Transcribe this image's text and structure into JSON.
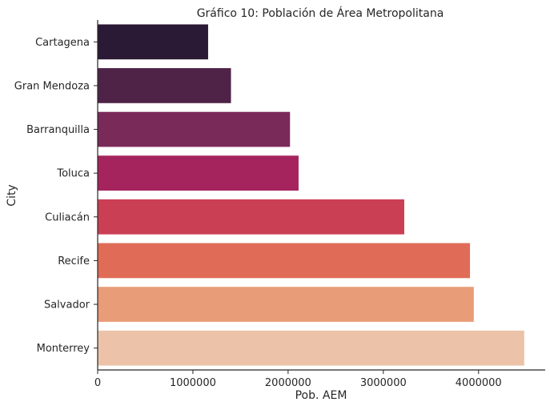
{
  "chart_data": {
    "type": "bar",
    "orientation": "horizontal",
    "title": "Gráfico 10: Población de Área Metropolitana",
    "xlabel": "Pob. AEM",
    "ylabel": "City",
    "categories": [
      "Cartagena",
      "Gran Mendoza",
      "Barranquilla",
      "Toluca",
      "Culiacán",
      "Recife",
      "Salvador",
      "Monterrey"
    ],
    "values": [
      1160000,
      1400000,
      2020000,
      2110000,
      3220000,
      3910000,
      3950000,
      4480000
    ],
    "xlim": [
      0,
      4700000
    ],
    "xticks": [
      0,
      1000000,
      2000000,
      3000000,
      4000000
    ],
    "xtick_labels": [
      "0",
      "1000000",
      "2000000",
      "3000000",
      "4000000"
    ],
    "grid": false,
    "colors": [
      "#2b1a35",
      "#4e2347",
      "#7a2a59",
      "#a5245e",
      "#cb3f55",
      "#e06c58",
      "#e89c78",
      "#ecc3a8"
    ]
  }
}
